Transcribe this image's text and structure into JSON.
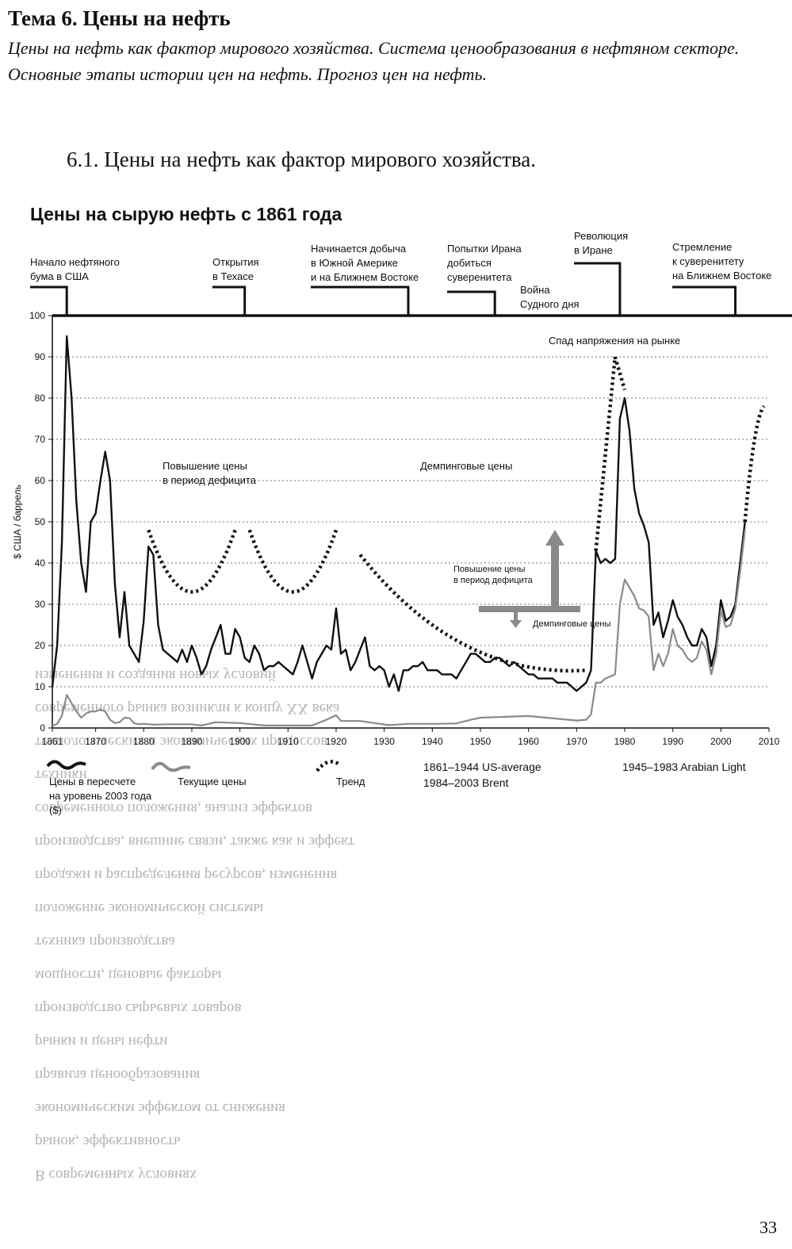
{
  "page": {
    "topic": "Тема 6. Цены на нефть",
    "subtitle": "Цены на нефть как фактор мирового хозяйства. Система ценообразования в нефтяном секторе. Основные этапы истории цен на нефть. Прогноз цен на нефть.",
    "section": "6.1. Цены на нефть как фактор мирового хозяйства.",
    "page_number": "33",
    "bleed_through": [
      "изменения и создания новых условий",
      "современного рынка возникли к концу XX века",
      "технологических и экономических процессов",
      "техники",
      "современного положения, анализ эффектов",
      "производства, внешние связи, также как и эффект",
      "продажи и распределения ресурсов, изменения",
      "положение экономической системы",
      "техника производства",
      "мощности, ценовые факторы",
      "производство сырьевых товаров",
      "рынки и цены нефти",
      "правила ценообразования",
      "экономическим эффектом от снижения",
      "рынок, эффективность",
      "В современных условиях"
    ]
  },
  "chart_data": {
    "type": "line",
    "title": "Цены на сырую нефть с 1861 года",
    "ylabel": "$ США / баррель",
    "xlim": [
      1861,
      2010
    ],
    "ylim": [
      0,
      100
    ],
    "x_ticks": [
      1861,
      1870,
      1880,
      1890,
      1900,
      1910,
      1920,
      1930,
      1940,
      1950,
      1960,
      1970,
      1980,
      1990,
      2000,
      2010
    ],
    "y_ticks": [
      0,
      10,
      20,
      30,
      40,
      50,
      60,
      70,
      80,
      90,
      100
    ],
    "grid": "horizontal dotted",
    "events": [
      {
        "label": "Начало нефтяного бума в США",
        "display": [
          "Начало нефтяного",
          "бума в США"
        ],
        "year": 1864
      },
      {
        "label": "Открытия в Техасе",
        "display": [
          "Открытия",
          "в Техасе"
        ],
        "year": 1901
      },
      {
        "label": "Начинается добыча в Южной Америке и на Ближнем Востоке",
        "display": [
          "Начинается добыча",
          "в Южной Америке",
          "и на Ближнем Востоке"
        ],
        "year": 1935
      },
      {
        "label": "Попытки Ирана добиться суверенитета",
        "display": [
          "Попытки Ирана",
          "добиться",
          "суверенитета"
        ],
        "year": 1953
      },
      {
        "label": "Война Судного дня",
        "display": [
          "Война",
          "Судного дня"
        ],
        "year": 1973
      },
      {
        "label": "Революция в Иране",
        "display": [
          "Революция",
          "в Иране"
        ],
        "year": 1979
      },
      {
        "label": "Стремление к суверенитету на Ближнем Востоке",
        "display": [
          "Стремление",
          "к суверенитету",
          "на Ближнем Востоке"
        ],
        "year": 2003
      }
    ],
    "annotations": [
      {
        "text": [
          "Повышение цены",
          "в период дефицита"
        ],
        "x": 1895,
        "y": 62
      },
      {
        "text": [
          "Демпинговые цены"
        ],
        "x": 1944,
        "y": 62
      },
      {
        "text": [
          "Спад напряжения на рынке"
        ],
        "x": 1976,
        "y": 93
      }
    ],
    "inset_legend": {
      "up": [
        "Повышение цены",
        "в период дефицита"
      ],
      "down": "Демпинговые цены"
    },
    "legend": [
      {
        "text": [
          "Цены в пересчете",
          "на уровень 2003 года",
          "($)"
        ],
        "style": "solid-black"
      },
      {
        "text": [
          "Текущие цены"
        ],
        "style": "solid-gray"
      },
      {
        "text": [
          "Тренд"
        ],
        "style": "dotted-black"
      }
    ],
    "source_notes": [
      [
        "1861–1944 US-average",
        "1984–2003 Brent"
      ],
      [
        "1945–1983 Arabian Light"
      ]
    ],
    "series": [
      {
        "name": "Цены в пересчете на уровень 2003 года ($)",
        "color": "#111111",
        "points": [
          [
            1861,
            10
          ],
          [
            1862,
            20
          ],
          [
            1863,
            45
          ],
          [
            1864,
            95
          ],
          [
            1865,
            80
          ],
          [
            1866,
            55
          ],
          [
            1867,
            40
          ],
          [
            1868,
            33
          ],
          [
            1869,
            50
          ],
          [
            1870,
            52
          ],
          [
            1871,
            60
          ],
          [
            1872,
            67
          ],
          [
            1873,
            60
          ],
          [
            1874,
            35
          ],
          [
            1875,
            22
          ],
          [
            1876,
            33
          ],
          [
            1877,
            20
          ],
          [
            1878,
            18
          ],
          [
            1879,
            16
          ],
          [
            1880,
            26
          ],
          [
            1881,
            44
          ],
          [
            1882,
            42
          ],
          [
            1883,
            25
          ],
          [
            1884,
            19
          ],
          [
            1885,
            18
          ],
          [
            1886,
            17
          ],
          [
            1887,
            16
          ],
          [
            1888,
            19
          ],
          [
            1889,
            16
          ],
          [
            1890,
            20
          ],
          [
            1891,
            17
          ],
          [
            1892,
            13
          ],
          [
            1893,
            15
          ],
          [
            1894,
            19
          ],
          [
            1895,
            22
          ],
          [
            1896,
            25
          ],
          [
            1897,
            18
          ],
          [
            1898,
            18
          ],
          [
            1899,
            24
          ],
          [
            1900,
            22
          ],
          [
            1901,
            17
          ],
          [
            1902,
            16
          ],
          [
            1903,
            20
          ],
          [
            1904,
            18
          ],
          [
            1905,
            14
          ],
          [
            1906,
            15
          ],
          [
            1907,
            15
          ],
          [
            1908,
            16
          ],
          [
            1909,
            15
          ],
          [
            1910,
            14
          ],
          [
            1911,
            13
          ],
          [
            1912,
            16
          ],
          [
            1913,
            20
          ],
          [
            1914,
            16
          ],
          [
            1915,
            12
          ],
          [
            1916,
            16
          ],
          [
            1917,
            18
          ],
          [
            1918,
            20
          ],
          [
            1919,
            19
          ],
          [
            1920,
            29
          ],
          [
            1921,
            18
          ],
          [
            1922,
            19
          ],
          [
            1923,
            14
          ],
          [
            1924,
            16
          ],
          [
            1925,
            19
          ],
          [
            1926,
            22
          ],
          [
            1927,
            15
          ],
          [
            1928,
            14
          ],
          [
            1929,
            15
          ],
          [
            1930,
            14
          ],
          [
            1931,
            10
          ],
          [
            1932,
            13
          ],
          [
            1933,
            9
          ],
          [
            1934,
            14
          ],
          [
            1935,
            14
          ],
          [
            1936,
            15
          ],
          [
            1937,
            15
          ],
          [
            1938,
            16
          ],
          [
            1939,
            14
          ],
          [
            1940,
            14
          ],
          [
            1941,
            14
          ],
          [
            1942,
            13
          ],
          [
            1943,
            13
          ],
          [
            1944,
            13
          ],
          [
            1945,
            12
          ],
          [
            1946,
            14
          ],
          [
            1947,
            16
          ],
          [
            1948,
            18
          ],
          [
            1949,
            18
          ],
          [
            1950,
            17
          ],
          [
            1951,
            16
          ],
          [
            1952,
            16
          ],
          [
            1953,
            17
          ],
          [
            1954,
            17
          ],
          [
            1955,
            16
          ],
          [
            1956,
            15
          ],
          [
            1957,
            16
          ],
          [
            1958,
            15
          ],
          [
            1959,
            14
          ],
          [
            1960,
            13
          ],
          [
            1961,
            13
          ],
          [
            1962,
            12
          ],
          [
            1963,
            12
          ],
          [
            1964,
            12
          ],
          [
            1965,
            12
          ],
          [
            1966,
            11
          ],
          [
            1967,
            11
          ],
          [
            1968,
            11
          ],
          [
            1969,
            10
          ],
          [
            1970,
            9
          ],
          [
            1971,
            10
          ],
          [
            1972,
            11
          ],
          [
            1973,
            14
          ],
          [
            1974,
            43
          ],
          [
            1975,
            40
          ],
          [
            1976,
            41
          ],
          [
            1977,
            40
          ],
          [
            1978,
            41
          ],
          [
            1979,
            75
          ],
          [
            1980,
            80
          ],
          [
            1981,
            72
          ],
          [
            1982,
            58
          ],
          [
            1983,
            52
          ],
          [
            1984,
            49
          ],
          [
            1985,
            45
          ],
          [
            1986,
            25
          ],
          [
            1987,
            28
          ],
          [
            1988,
            22
          ],
          [
            1989,
            26
          ],
          [
            1990,
            31
          ],
          [
            1991,
            27
          ],
          [
            1992,
            25
          ],
          [
            1993,
            22
          ],
          [
            1994,
            20
          ],
          [
            1995,
            20
          ],
          [
            1996,
            24
          ],
          [
            1997,
            22
          ],
          [
            1998,
            15
          ],
          [
            1999,
            20
          ],
          [
            2000,
            31
          ],
          [
            2001,
            26
          ],
          [
            2002,
            27
          ],
          [
            2003,
            30
          ],
          [
            2004,
            40
          ],
          [
            2005,
            50
          ]
        ]
      },
      {
        "name": "Текущие цены",
        "color": "#8a8a8a",
        "points": [
          [
            1861,
            0.5
          ],
          [
            1862,
            1
          ],
          [
            1863,
            3
          ],
          [
            1864,
            8
          ],
          [
            1865,
            6
          ],
          [
            1866,
            4
          ],
          [
            1867,
            2.5
          ],
          [
            1868,
            3.5
          ],
          [
            1869,
            4
          ],
          [
            1870,
            4
          ],
          [
            1871,
            4.5
          ],
          [
            1872,
            4
          ],
          [
            1873,
            2
          ],
          [
            1874,
            1.2
          ],
          [
            1875,
            1.4
          ],
          [
            1876,
            2.5
          ],
          [
            1877,
            2.4
          ],
          [
            1878,
            1.2
          ],
          [
            1879,
            0.9
          ],
          [
            1880,
            1
          ],
          [
            1882,
            0.8
          ],
          [
            1885,
            0.9
          ],
          [
            1890,
            0.9
          ],
          [
            1892,
            0.6
          ],
          [
            1895,
            1.4
          ],
          [
            1900,
            1.2
          ],
          [
            1905,
            0.6
          ],
          [
            1910,
            0.6
          ],
          [
            1915,
            0.6
          ],
          [
            1918,
            2
          ],
          [
            1920,
            3.1
          ],
          [
            1921,
            1.7
          ],
          [
            1925,
            1.7
          ],
          [
            1928,
            1.2
          ],
          [
            1931,
            0.7
          ],
          [
            1935,
            1
          ],
          [
            1940,
            1
          ],
          [
            1945,
            1.1
          ],
          [
            1948,
            2
          ],
          [
            1950,
            2.5
          ],
          [
            1960,
            2.9
          ],
          [
            1970,
            1.8
          ],
          [
            1972,
            2
          ],
          [
            1973,
            3.3
          ],
          [
            1974,
            11
          ],
          [
            1975,
            11
          ],
          [
            1976,
            12
          ],
          [
            1977,
            12.5
          ],
          [
            1978,
            13
          ],
          [
            1979,
            30
          ],
          [
            1980,
            36
          ],
          [
            1981,
            34
          ],
          [
            1982,
            32
          ],
          [
            1983,
            29
          ],
          [
            1984,
            28.5
          ],
          [
            1985,
            27
          ],
          [
            1986,
            14
          ],
          [
            1987,
            18
          ],
          [
            1988,
            15
          ],
          [
            1989,
            18
          ],
          [
            1990,
            24
          ],
          [
            1991,
            20
          ],
          [
            1992,
            19
          ],
          [
            1993,
            17
          ],
          [
            1994,
            16
          ],
          [
            1995,
            17
          ],
          [
            1996,
            21
          ],
          [
            1997,
            19
          ],
          [
            1998,
            13
          ],
          [
            1999,
            18
          ],
          [
            2000,
            28.5
          ],
          [
            2001,
            24.5
          ],
          [
            2002,
            25
          ],
          [
            2003,
            29
          ],
          [
            2004,
            38
          ],
          [
            2005,
            48
          ]
        ]
      }
    ],
    "trend_arcs": [
      {
        "points": [
          [
            1881,
            48
          ],
          [
            1890,
            33
          ],
          [
            1899,
            48
          ]
        ]
      },
      {
        "points": [
          [
            1902,
            48
          ],
          [
            1911,
            33
          ],
          [
            1920,
            48
          ]
        ]
      },
      {
        "points": [
          [
            1925,
            42
          ],
          [
            1947,
            20
          ],
          [
            1972,
            14
          ]
        ]
      },
      {
        "points": [
          [
            1974,
            43
          ],
          [
            1978,
            90
          ]
        ]
      },
      {
        "points": [
          [
            1978,
            90
          ],
          [
            1980,
            82
          ]
        ]
      },
      {
        "points": [
          [
            2005,
            50
          ],
          [
            2007,
            70
          ],
          [
            2009,
            78
          ]
        ]
      }
    ]
  }
}
